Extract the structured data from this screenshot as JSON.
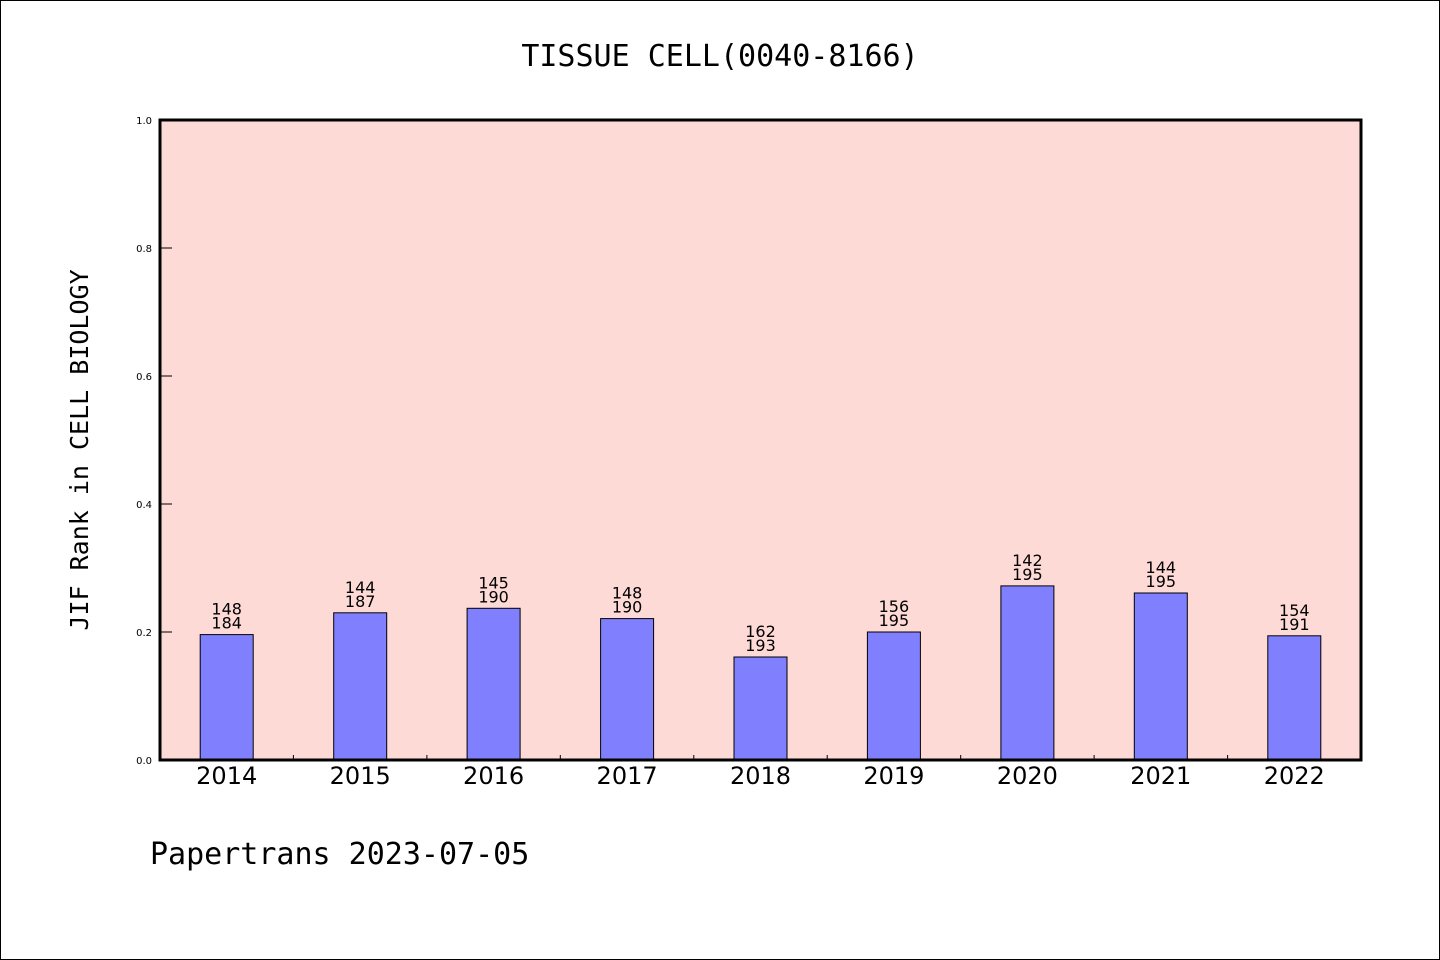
{
  "chart_data": {
    "type": "bar",
    "title": "TISSUE CELL(0040-8166)",
    "xlabel": "",
    "ylabel": "JIF Rank in CELL BIOLOGY",
    "ylim": [
      0,
      1.0
    ],
    "yticks": [
      "0.0",
      "0.2",
      "0.4",
      "0.6",
      "0.8",
      "1.0"
    ],
    "categories": [
      "2014",
      "2015",
      "2016",
      "2017",
      "2018",
      "2019",
      "2020",
      "2021",
      "2022"
    ],
    "values": [
      0.196,
      0.23,
      0.237,
      0.221,
      0.161,
      0.2,
      0.272,
      0.261,
      0.194
    ],
    "labels": [
      [
        "148",
        "184"
      ],
      [
        "144",
        "187"
      ],
      [
        "145",
        "190"
      ],
      [
        "148",
        "190"
      ],
      [
        "162",
        "193"
      ],
      [
        "156",
        "195"
      ],
      [
        "142",
        "195"
      ],
      [
        "144",
        "195"
      ],
      [
        "154",
        "191"
      ]
    ],
    "grid": false,
    "colors": {
      "plot_background": "#fddad6",
      "bar_fill": "#8080ff",
      "bar_stroke": "#000000"
    }
  },
  "footer": "Papertrans 2023-07-05"
}
